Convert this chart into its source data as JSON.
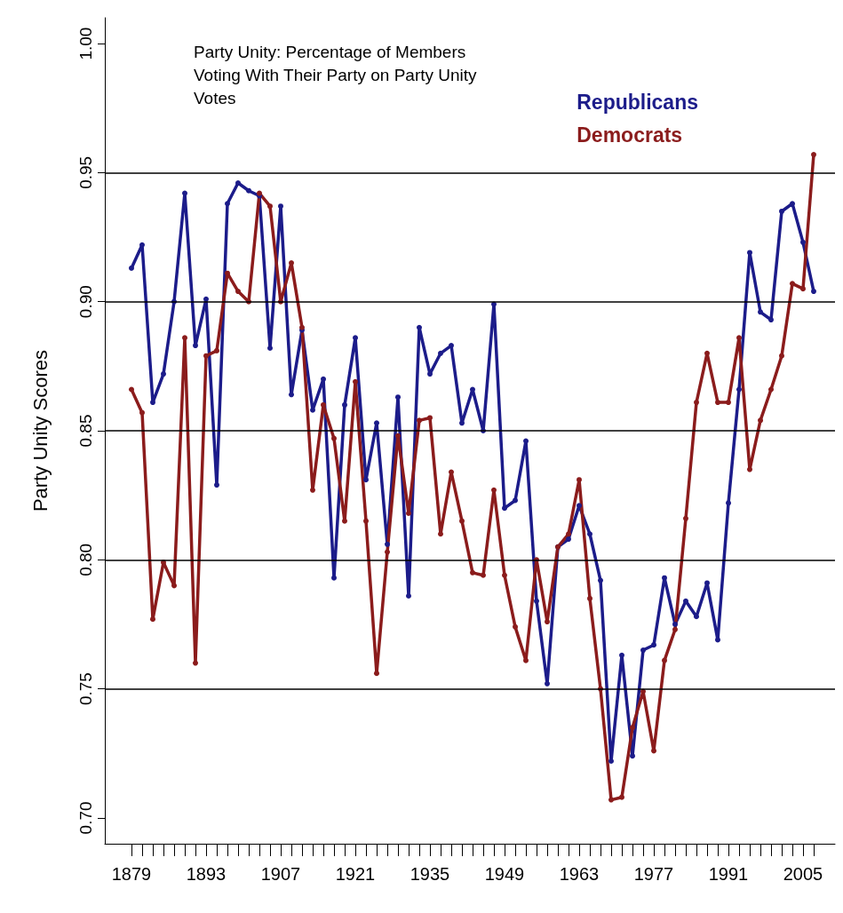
{
  "chart_data": {
    "type": "line",
    "title": "Party Unity: Percentage of Members Voting With Their Party on Party Unity Votes",
    "ylabel": "Party Unity Scores",
    "x": [
      1879,
      1881,
      1883,
      1885,
      1887,
      1889,
      1891,
      1893,
      1895,
      1897,
      1899,
      1901,
      1903,
      1905,
      1907,
      1909,
      1911,
      1913,
      1915,
      1917,
      1919,
      1921,
      1923,
      1925,
      1927,
      1929,
      1931,
      1933,
      1935,
      1937,
      1939,
      1941,
      1943,
      1945,
      1947,
      1949,
      1951,
      1953,
      1955,
      1957,
      1959,
      1961,
      1963,
      1965,
      1967,
      1969,
      1971,
      1973,
      1975,
      1977,
      1979,
      1981,
      1983,
      1985,
      1987,
      1989,
      1991,
      1993,
      1995,
      1997,
      1999,
      2001,
      2003,
      2005,
      2007
    ],
    "series": [
      {
        "name": "Republicans",
        "color": "#1c1c8a",
        "values": [
          0.913,
          0.922,
          0.861,
          0.872,
          0.9,
          0.942,
          0.883,
          0.901,
          0.829,
          0.938,
          0.946,
          0.943,
          0.941,
          0.882,
          0.937,
          0.864,
          0.889,
          0.858,
          0.87,
          0.793,
          0.86,
          0.886,
          0.831,
          0.853,
          0.806,
          0.863,
          0.786,
          0.89,
          0.872,
          0.88,
          0.883,
          0.853,
          0.866,
          0.85,
          0.899,
          0.82,
          0.823,
          0.846,
          0.784,
          0.752,
          0.805,
          0.808,
          0.821,
          0.81,
          0.792,
          0.722,
          0.763,
          0.724,
          0.765,
          0.767,
          0.793,
          0.775,
          0.784,
          0.778,
          0.791,
          0.769,
          0.822,
          0.866,
          0.919,
          0.896,
          0.893,
          0.935,
          0.938,
          0.923,
          0.904
        ]
      },
      {
        "name": "Democrats",
        "color": "#8b1c1c",
        "values": [
          0.866,
          0.857,
          0.777,
          0.799,
          0.79,
          0.886,
          0.76,
          0.879,
          0.881,
          0.911,
          0.904,
          0.9,
          0.942,
          0.937,
          0.9,
          0.915,
          0.89,
          0.827,
          0.86,
          0.847,
          0.815,
          0.869,
          0.815,
          0.756,
          0.803,
          0.848,
          0.818,
          0.854,
          0.855,
          0.81,
          0.834,
          0.815,
          0.795,
          0.794,
          0.827,
          0.794,
          0.774,
          0.761,
          0.8,
          0.776,
          0.805,
          0.81,
          0.831,
          0.785,
          0.75,
          0.707,
          0.708,
          0.735,
          0.749,
          0.726,
          0.761,
          0.773,
          0.816,
          0.861,
          0.88,
          0.861,
          0.861,
          0.886,
          0.835,
          0.854,
          0.866,
          0.879,
          0.907,
          0.905,
          0.957
        ]
      }
    ],
    "xlim": [
      1874,
      2011
    ],
    "xticks": [
      1879,
      {
        "value": 1881,
        "label": null
      },
      {
        "value": 1883,
        "label": null
      },
      {
        "value": 1885,
        "label": null
      },
      {
        "value": 1887,
        "label": null
      },
      {
        "value": 1889,
        "label": null
      },
      {
        "value": 1891,
        "label": null
      },
      1893,
      {
        "value": 1895,
        "label": null
      },
      {
        "value": 1897,
        "label": null
      },
      {
        "value": 1899,
        "label": null
      },
      {
        "value": 1901,
        "label": null
      },
      {
        "value": 1903,
        "label": null
      },
      {
        "value": 1905,
        "label": null
      },
      1907,
      {
        "value": 1909,
        "label": null
      },
      {
        "value": 1911,
        "label": null
      },
      {
        "value": 1913,
        "label": null
      },
      {
        "value": 1915,
        "label": null
      },
      {
        "value": 1917,
        "label": null
      },
      {
        "value": 1919,
        "label": null
      },
      1921,
      {
        "value": 1923,
        "label": null
      },
      {
        "value": 1925,
        "label": null
      },
      {
        "value": 1927,
        "label": null
      },
      {
        "value": 1929,
        "label": null
      },
      {
        "value": 1931,
        "label": null
      },
      {
        "value": 1933,
        "label": null
      },
      1935,
      {
        "value": 1937,
        "label": null
      },
      {
        "value": 1939,
        "label": null
      },
      {
        "value": 1941,
        "label": null
      },
      {
        "value": 1943,
        "label": null
      },
      {
        "value": 1945,
        "label": null
      },
      {
        "value": 1947,
        "label": null
      },
      1949,
      {
        "value": 1951,
        "label": null
      },
      {
        "value": 1953,
        "label": null
      },
      {
        "value": 1955,
        "label": null
      },
      {
        "value": 1957,
        "label": null
      },
      {
        "value": 1959,
        "label": null
      },
      {
        "value": 1961,
        "label": null
      },
      1963,
      {
        "value": 1965,
        "label": null
      },
      {
        "value": 1967,
        "label": null
      },
      {
        "value": 1969,
        "label": null
      },
      {
        "value": 1971,
        "label": null
      },
      {
        "value": 1973,
        "label": null
      },
      {
        "value": 1975,
        "label": null
      },
      1977,
      {
        "value": 1979,
        "label": null
      },
      {
        "value": 1981,
        "label": null
      },
      {
        "value": 1983,
        "label": null
      },
      {
        "value": 1985,
        "label": null
      },
      {
        "value": 1987,
        "label": null
      },
      {
        "value": 1989,
        "label": null
      },
      1991,
      {
        "value": 1993,
        "label": null
      },
      {
        "value": 1995,
        "label": null
      },
      {
        "value": 1997,
        "label": null
      },
      {
        "value": 1999,
        "label": null
      },
      {
        "value": 2001,
        "label": null
      },
      {
        "value": 2003,
        "label": null
      },
      2005,
      {
        "value": 2007,
        "label": null
      }
    ],
    "ylim": [
      0.69,
      1.01
    ],
    "yticks": [
      {
        "value": 0.7,
        "label": "0.70"
      },
      {
        "value": 0.75,
        "label": "0.75"
      },
      {
        "value": 0.8,
        "label": "0.80"
      },
      {
        "value": 0.85,
        "label": "0.85"
      },
      {
        "value": 0.9,
        "label": "0.90"
      },
      {
        "value": 0.95,
        "label": "0.95"
      },
      {
        "value": 1.0,
        "label": "1.00"
      }
    ],
    "ref_lines": [
      {
        "axis": "y",
        "value": 0.75,
        "color": "#000000"
      },
      {
        "axis": "y",
        "value": 0.8,
        "color": "#000000"
      },
      {
        "axis": "y",
        "value": 0.85,
        "color": "#000000"
      },
      {
        "axis": "y",
        "value": 0.9,
        "color": "#000000"
      },
      {
        "axis": "y",
        "value": 0.95,
        "color": "#000000"
      }
    ],
    "legend": "top right",
    "marker": "circle",
    "line_style": "solid",
    "grid": false
  }
}
